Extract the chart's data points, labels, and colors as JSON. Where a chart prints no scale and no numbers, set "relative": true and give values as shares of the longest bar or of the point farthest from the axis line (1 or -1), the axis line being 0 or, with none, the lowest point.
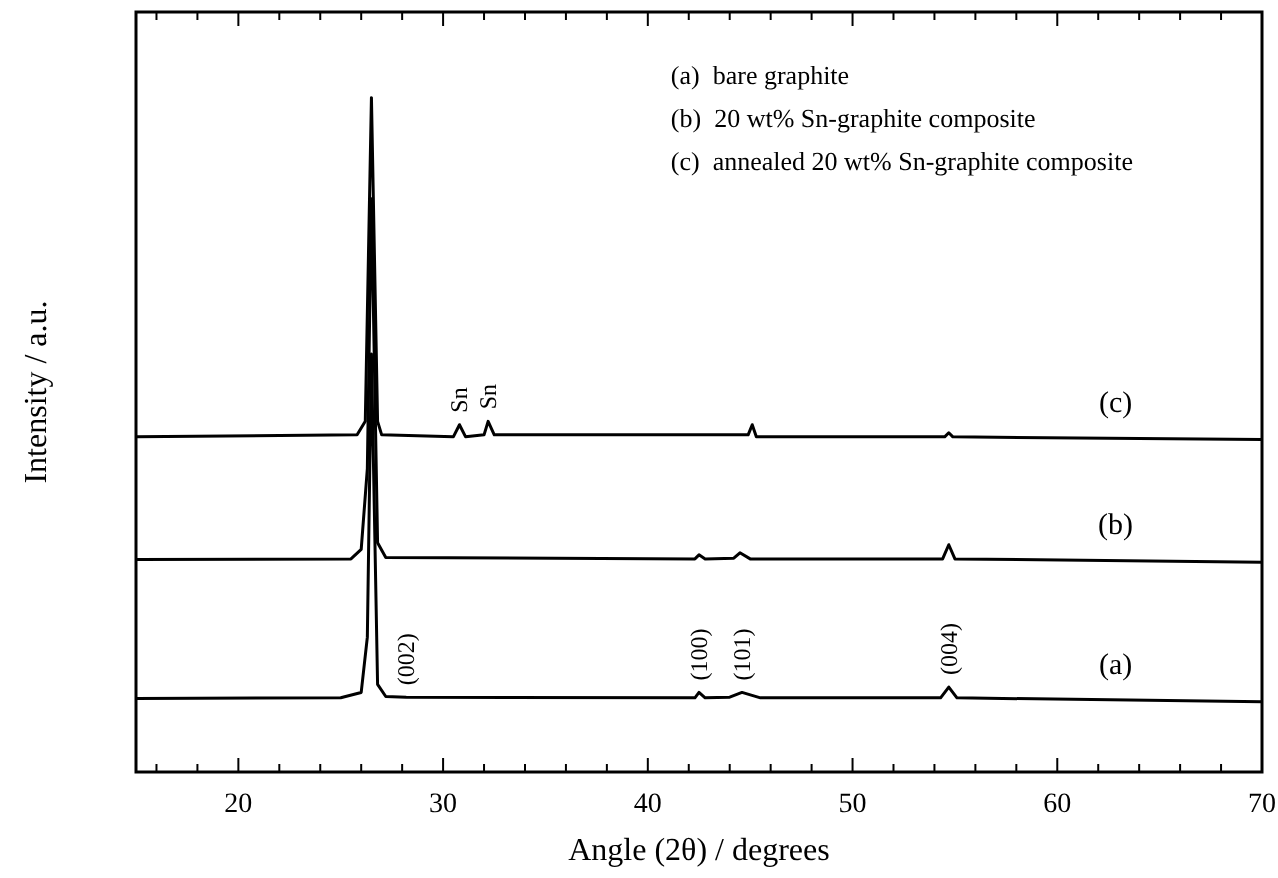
{
  "chart_data": {
    "type": "line",
    "relative": true,
    "xlabel": "Angle (2θ) / degrees",
    "ylabel": "Intensity / a.u.",
    "xlim": [
      15,
      70
    ],
    "xticks": [
      {
        "value": 16,
        "label": null
      },
      {
        "value": 18,
        "label": null
      },
      20,
      {
        "value": 22,
        "label": null
      },
      {
        "value": 24,
        "label": null
      },
      {
        "value": 26,
        "label": null
      },
      {
        "value": 28,
        "label": null
      },
      30,
      {
        "value": 32,
        "label": null
      },
      {
        "value": 34,
        "label": null
      },
      {
        "value": 36,
        "label": null
      },
      {
        "value": 38,
        "label": null
      },
      40,
      {
        "value": 42,
        "label": null
      },
      {
        "value": 44,
        "label": null
      },
      {
        "value": 46,
        "label": null
      },
      {
        "value": 48,
        "label": null
      },
      50,
      {
        "value": 52,
        "label": null
      },
      {
        "value": 54,
        "label": null
      },
      {
        "value": 56,
        "label": null
      },
      {
        "value": 58,
        "label": null
      },
      60,
      {
        "value": 62,
        "label": null
      },
      {
        "value": 64,
        "label": null
      },
      {
        "value": 66,
        "label": null
      },
      {
        "value": 68,
        "label": null
      },
      70
    ],
    "tick_labels": "x",
    "legend": false,
    "grid": false,
    "series": [
      {
        "name": "(a)",
        "color": "#000000",
        "x": [
          15,
          25,
          26,
          26.3,
          26.5,
          26.8,
          27.2,
          28.2,
          42.3,
          42.5,
          42.8,
          44,
          44.6,
          45.5,
          54.3,
          54.7,
          55.1,
          70
        ],
        "values": [
          0.109,
          0.11,
          0.118,
          0.2,
          0.62,
          0.13,
          0.112,
          0.111,
          0.11,
          0.118,
          0.11,
          0.111,
          0.118,
          0.11,
          0.11,
          0.126,
          0.11,
          0.104
        ]
      },
      {
        "name": "(b)",
        "color": "#000000",
        "x": [
          15,
          25.5,
          26,
          26.3,
          26.5,
          26.8,
          27.2,
          42.3,
          42.5,
          42.8,
          44.2,
          44.5,
          45,
          54.4,
          54.7,
          55,
          70
        ],
        "values": [
          0.315,
          0.316,
          0.33,
          0.45,
          0.85,
          0.34,
          0.318,
          0.316,
          0.322,
          0.316,
          0.317,
          0.325,
          0.316,
          0.316,
          0.337,
          0.316,
          0.311
        ]
      },
      {
        "name": "(c)",
        "color": "#000000",
        "x": [
          15,
          25.8,
          26.2,
          26.5,
          26.8,
          27,
          30.5,
          30.8,
          31.1,
          32,
          32.2,
          32.5,
          44.9,
          45.1,
          45.3,
          54.5,
          54.7,
          54.9,
          70
        ],
        "values": [
          0.497,
          0.5,
          0.52,
          1,
          0.52,
          0.5,
          0.497,
          0.515,
          0.497,
          0.5,
          0.52,
          0.5,
          0.5,
          0.515,
          0.497,
          0.497,
          0.503,
          0.497,
          0.493
        ]
      }
    ],
    "annotations": [
      "(a)  bare graphite",
      "(b)  20 wt% Sn-graphite composite",
      "(c)  annealed 20 wt% Sn-graphite composite",
      {
        "text": "(002)",
        "x": 28.2,
        "y": 0.111
      },
      {
        "text": "Sn",
        "x": 30.8,
        "y": 0.515
      },
      {
        "text": "Sn",
        "x": 32.2,
        "y": 0.52
      },
      {
        "text": "(100)",
        "x": 42.5,
        "y": 0.118
      },
      {
        "text": "(101)",
        "x": 44.6,
        "y": 0.118
      },
      {
        "text": "(004)",
        "x": 54.7,
        "y": 0.126
      }
    ]
  }
}
